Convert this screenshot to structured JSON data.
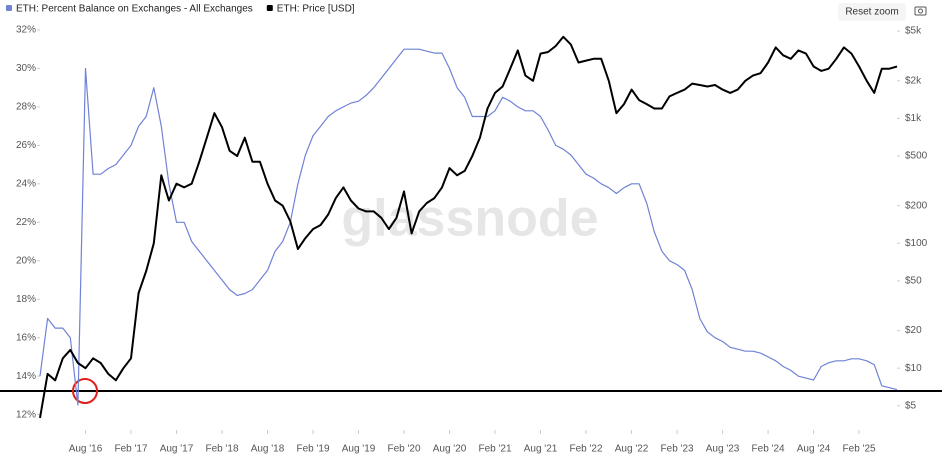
{
  "chart_data": {
    "type": "line",
    "legend": "top-left",
    "reset_zoom": "Reset zoom",
    "watermark": "glassnode",
    "x": [
      "2016-02",
      "2016-03",
      "2016-04",
      "2016-05",
      "2016-06",
      "2016-07",
      "2016-08",
      "2016-09",
      "2016-10",
      "2016-11",
      "2016-12",
      "2017-01",
      "2017-02",
      "2017-03",
      "2017-04",
      "2017-05",
      "2017-06",
      "2017-07",
      "2017-08",
      "2017-09",
      "2017-10",
      "2017-11",
      "2017-12",
      "2018-01",
      "2018-02",
      "2018-03",
      "2018-04",
      "2018-05",
      "2018-06",
      "2018-07",
      "2018-08",
      "2018-09",
      "2018-10",
      "2018-11",
      "2018-12",
      "2019-01",
      "2019-02",
      "2019-03",
      "2019-04",
      "2019-05",
      "2019-06",
      "2019-07",
      "2019-08",
      "2019-09",
      "2019-10",
      "2019-11",
      "2019-12",
      "2020-01",
      "2020-02",
      "2020-03",
      "2020-04",
      "2020-05",
      "2020-06",
      "2020-07",
      "2020-08",
      "2020-09",
      "2020-10",
      "2020-11",
      "2020-12",
      "2021-01",
      "2021-02",
      "2021-03",
      "2021-04",
      "2021-05",
      "2021-06",
      "2021-07",
      "2021-08",
      "2021-09",
      "2021-10",
      "2021-11",
      "2021-12",
      "2022-01",
      "2022-02",
      "2022-03",
      "2022-04",
      "2022-05",
      "2022-06",
      "2022-07",
      "2022-08",
      "2022-09",
      "2022-10",
      "2022-11",
      "2022-12",
      "2023-01",
      "2023-02",
      "2023-03",
      "2023-04",
      "2023-05",
      "2023-06",
      "2023-07",
      "2023-08",
      "2023-09",
      "2023-10",
      "2023-11",
      "2023-12",
      "2024-01",
      "2024-02",
      "2024-03",
      "2024-04",
      "2024-05",
      "2024-06",
      "2024-07",
      "2024-08",
      "2024-09",
      "2024-10",
      "2024-11",
      "2024-12",
      "2025-01",
      "2025-02",
      "2025-03",
      "2025-04",
      "2025-05",
      "2025-06",
      "2025-07"
    ],
    "series": [
      {
        "name": "ETH: Percent Balance on Exchanges - All Exchanges",
        "color": "#6f82d6",
        "axis": "y",
        "values": [
          14,
          17,
          16.5,
          16.5,
          16,
          12.5,
          30,
          24.5,
          24.5,
          24.8,
          25,
          25.5,
          26,
          27,
          27.5,
          29,
          27,
          24,
          22,
          22,
          21,
          20.5,
          20,
          19.5,
          19,
          18.5,
          18.2,
          18.3,
          18.5,
          19,
          19.5,
          20.5,
          21,
          22,
          24,
          25.5,
          26.5,
          27,
          27.5,
          27.8,
          28,
          28.2,
          28.3,
          28.6,
          29,
          29.5,
          30,
          30.5,
          31,
          31,
          31,
          30.9,
          30.8,
          30.8,
          30,
          29,
          28.5,
          27.5,
          27.5,
          27.5,
          27.8,
          28.5,
          28.3,
          28,
          27.8,
          27.8,
          27.5,
          26.8,
          26,
          25.8,
          25.5,
          25,
          24.5,
          24.3,
          24,
          23.8,
          23.5,
          23.8,
          24,
          24,
          23,
          21.5,
          20.5,
          20,
          19.8,
          19.5,
          18.5,
          17,
          16.3,
          16,
          15.8,
          15.5,
          15.4,
          15.3,
          15.3,
          15.2,
          15,
          14.8,
          14.5,
          14.3,
          14,
          13.9,
          13.8,
          14.5,
          14.7,
          14.8,
          14.8,
          14.9,
          14.9,
          14.8,
          14.6,
          13.5,
          13.4,
          13.3
        ]
      },
      {
        "name": "ETH: Price [USD]",
        "color": "#000000",
        "axis": "y2",
        "values": [
          4,
          9,
          8,
          12,
          14,
          11,
          10,
          12,
          11,
          9,
          8,
          10,
          12,
          40,
          60,
          100,
          350,
          220,
          300,
          280,
          300,
          450,
          700,
          1100,
          850,
          550,
          500,
          700,
          450,
          450,
          300,
          220,
          200,
          150,
          90,
          110,
          130,
          140,
          170,
          230,
          280,
          220,
          190,
          180,
          180,
          160,
          130,
          160,
          260,
          120,
          180,
          210,
          230,
          280,
          400,
          350,
          380,
          500,
          700,
          1200,
          1600,
          1800,
          2500,
          3500,
          2200,
          2000,
          3300,
          3400,
          3800,
          4500,
          3900,
          2800,
          2900,
          3000,
          3000,
          2000,
          1100,
          1300,
          1700,
          1400,
          1300,
          1200,
          1200,
          1500,
          1600,
          1700,
          1900,
          1850,
          1800,
          1850,
          1700,
          1600,
          1700,
          2000,
          2200,
          2300,
          2800,
          3700,
          3200,
          3000,
          3500,
          3300,
          2600,
          2400,
          2500,
          3000,
          3700,
          3300,
          2600,
          2000,
          1600,
          2500,
          2500,
          2600
        ]
      }
    ],
    "xlim": [
      "2016-02",
      "2025-07"
    ],
    "xticks": [
      {
        "value": "2016-08",
        "label": "Aug '16"
      },
      {
        "value": "2017-02",
        "label": "Feb '17"
      },
      {
        "value": "2017-08",
        "label": "Aug '17"
      },
      {
        "value": "2018-02",
        "label": "Feb '18"
      },
      {
        "value": "2018-08",
        "label": "Aug '18"
      },
      {
        "value": "2019-02",
        "label": "Feb '19"
      },
      {
        "value": "2019-08",
        "label": "Aug '19"
      },
      {
        "value": "2020-02",
        "label": "Feb '20"
      },
      {
        "value": "2020-08",
        "label": "Aug '20"
      },
      {
        "value": "2021-02",
        "label": "Feb '21"
      },
      {
        "value": "2021-08",
        "label": "Aug '21"
      },
      {
        "value": "2022-02",
        "label": "Feb '22"
      },
      {
        "value": "2022-08",
        "label": "Aug '22"
      },
      {
        "value": "2023-02",
        "label": "Feb '23"
      },
      {
        "value": "2023-08",
        "label": "Aug '23"
      },
      {
        "value": "2024-02",
        "label": "Feb '24"
      },
      {
        "value": "2024-08",
        "label": "Aug '24"
      },
      {
        "value": "2025-02",
        "label": "Feb '25"
      }
    ],
    "ylim": [
      11.2,
      32
    ],
    "yticks": [
      {
        "value": 12,
        "label": "12%"
      },
      {
        "value": 14,
        "label": "14%"
      },
      {
        "value": 16,
        "label": "16%"
      },
      {
        "value": 18,
        "label": "18%"
      },
      {
        "value": 20,
        "label": "20%"
      },
      {
        "value": 22,
        "label": "22%"
      },
      {
        "value": 24,
        "label": "24%"
      },
      {
        "value": 26,
        "label": "26%"
      },
      {
        "value": 28,
        "label": "28%"
      },
      {
        "value": 30,
        "label": "30%"
      },
      {
        "value": 32,
        "label": "32%"
      }
    ],
    "y2lim": [
      3.2,
      5100
    ],
    "y2scale": "log",
    "y2ticks": [
      {
        "value": 5,
        "label": "$5"
      },
      {
        "value": 10,
        "label": "$10"
      },
      {
        "value": 20,
        "label": "$20"
      },
      {
        "value": 50,
        "label": "$50"
      },
      {
        "value": 100,
        "label": "$100"
      },
      {
        "value": 200,
        "label": "$200"
      },
      {
        "value": 500,
        "label": "$500"
      },
      {
        "value": 1000,
        "label": "$1k"
      },
      {
        "value": 2000,
        "label": "$2k"
      },
      {
        "value": 5000,
        "label": "$5k"
      }
    ]
  }
}
